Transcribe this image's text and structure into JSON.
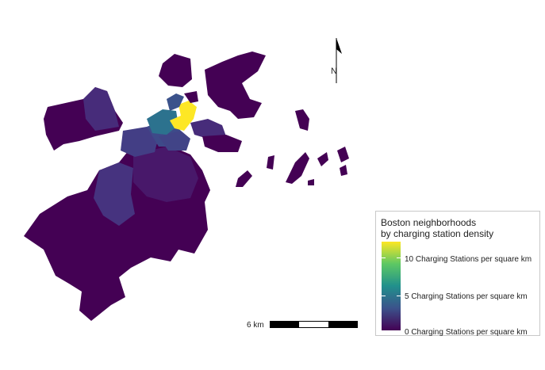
{
  "legend": {
    "title_line1": "Boston neighborhoods",
    "title_line2": "by charging station density",
    "labels": [
      "10 Charging Stations per square km",
      "5 Charging Stations per square km",
      "0 Charging Stations per square km"
    ],
    "colors": [
      "#440154",
      "#3b528b",
      "#21908c",
      "#5dc863",
      "#fde725"
    ]
  },
  "scale_bar": {
    "label": "6 km"
  },
  "north_arrow": {
    "label": "N"
  }
}
